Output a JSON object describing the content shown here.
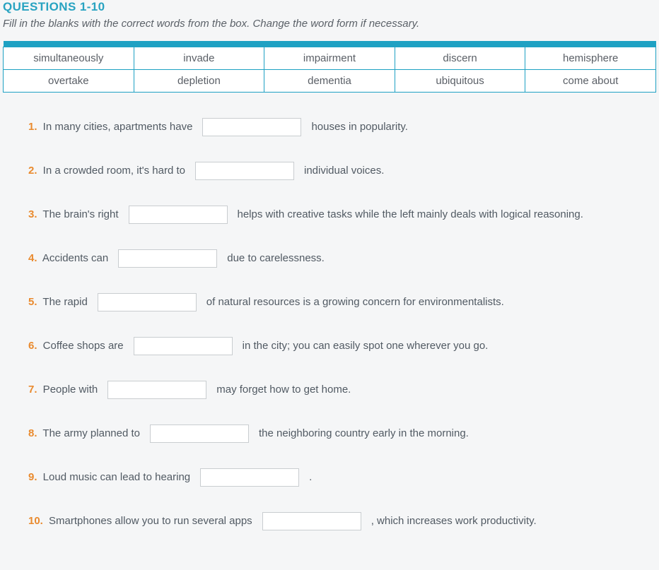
{
  "heading": "QUESTIONS 1-10",
  "instructions": "Fill in the blanks with the correct words from the box. Change the word form if necessary.",
  "wordbox": {
    "rows": [
      [
        "simultaneously",
        "invade",
        "impairment",
        "discern",
        "hemisphere"
      ],
      [
        "overtake",
        "depletion",
        "dementia",
        "ubiquitous",
        "come about"
      ]
    ]
  },
  "questions": [
    {
      "num": "1.",
      "before": " In many cities, apartments have",
      "after": "houses in popularity."
    },
    {
      "num": "2.",
      "before": " In a crowded room, it's hard to",
      "after": "individual voices."
    },
    {
      "num": "3.",
      "before": " The brain's right",
      "after": "helps with creative tasks while the left mainly deals with logical reasoning."
    },
    {
      "num": "4.",
      "before": " Accidents can",
      "after": "due to carelessness."
    },
    {
      "num": "5.",
      "before": " The rapid",
      "after": "of natural resources is a growing concern for environmentalists."
    },
    {
      "num": "6.",
      "before": " Coffee shops are",
      "after": "in the city; you can easily spot one wherever you go."
    },
    {
      "num": "7.",
      "before": " People with",
      "after": "may forget how to get home."
    },
    {
      "num": "8.",
      "before": " The army planned to",
      "after": "the neighboring country early in the morning."
    },
    {
      "num": "9.",
      "before": " Loud music can lead to hearing",
      "after": "."
    },
    {
      "num": "10.",
      "before": " Smartphones allow you to run several apps",
      "after": ", which increases work productivity."
    }
  ]
}
